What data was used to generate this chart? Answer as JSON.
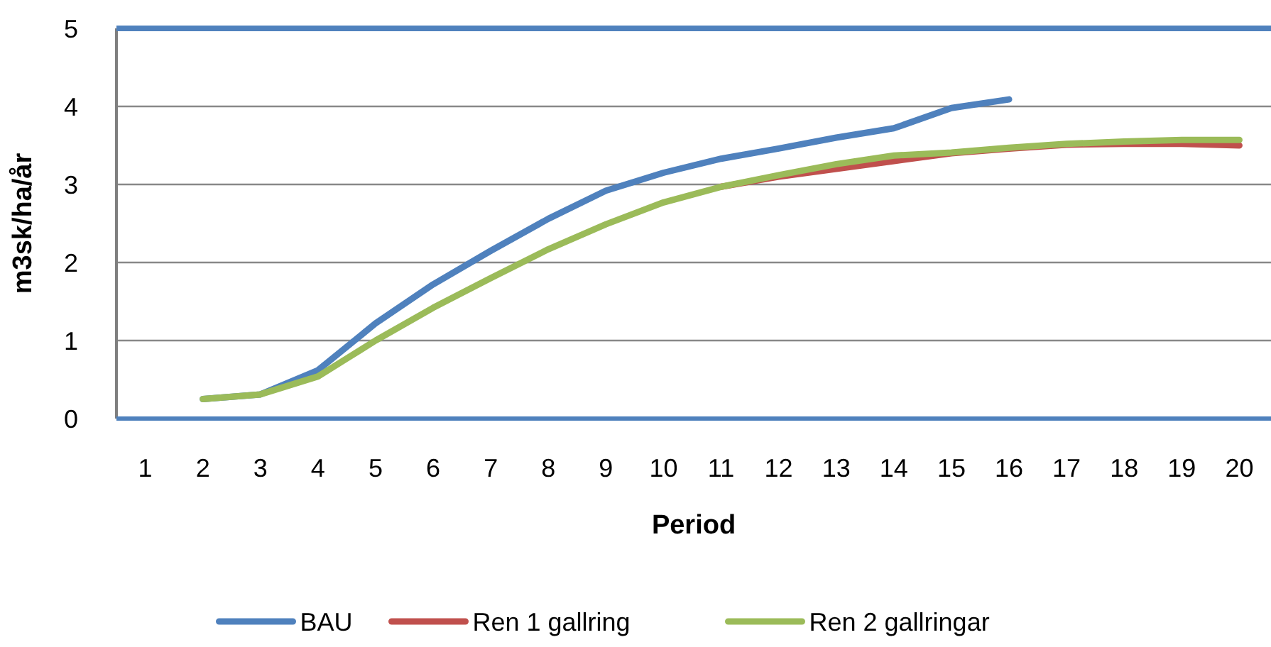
{
  "chart_data": {
    "type": "line",
    "xlabel": "Period",
    "ylabel": "m3sk/ha/år",
    "categories": [
      "1",
      "2",
      "3",
      "4",
      "5",
      "6",
      "7",
      "8",
      "9",
      "10",
      "11",
      "12",
      "13",
      "14",
      "15",
      "16",
      "17",
      "18",
      "19",
      "20"
    ],
    "ylim": [
      0,
      5
    ],
    "yticks": [
      0,
      1,
      2,
      3,
      4,
      5
    ],
    "grid": "y",
    "legend": "bottom",
    "marker": "none",
    "line_style": "solid",
    "series": [
      {
        "name": "BAU",
        "color": "#4f81bd",
        "values": [
          null,
          0.25,
          0.31,
          0.62,
          1.22,
          1.72,
          2.15,
          2.56,
          2.92,
          3.15,
          3.33,
          3.46,
          3.6,
          3.72,
          3.98,
          4.09,
          null,
          null,
          null,
          null
        ]
      },
      {
        "name": "Ren 1 gallring",
        "color": "#c0504d",
        "values": [
          null,
          null,
          null,
          null,
          null,
          null,
          null,
          null,
          null,
          null,
          2.97,
          3.1,
          3.2,
          3.3,
          3.4,
          3.46,
          3.51,
          3.52,
          3.52,
          3.5
        ]
      },
      {
        "name": "Ren 2 gallringar",
        "color": "#9bbb59",
        "values": [
          null,
          0.25,
          0.31,
          0.54,
          1.0,
          1.42,
          1.8,
          2.17,
          2.49,
          2.77,
          2.97,
          3.12,
          3.26,
          3.37,
          3.41,
          3.47,
          3.52,
          3.55,
          3.57,
          3.57
        ]
      }
    ]
  }
}
